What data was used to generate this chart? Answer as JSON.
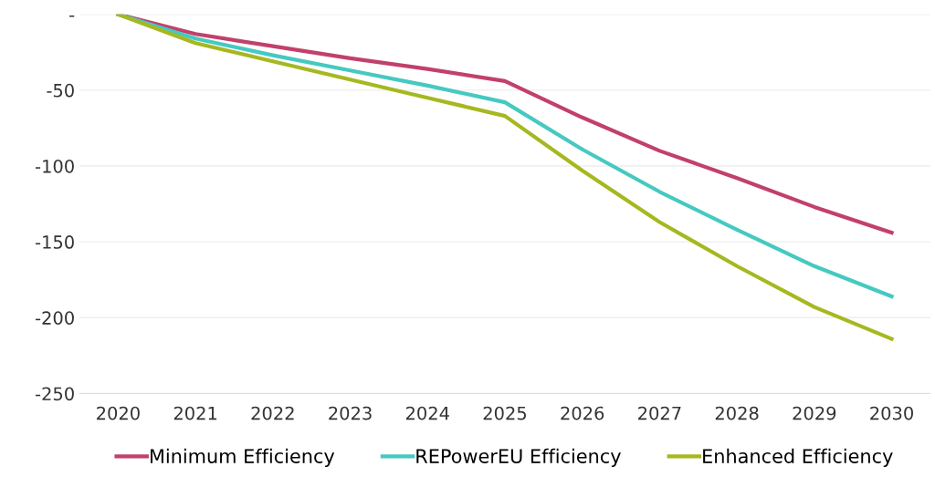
{
  "chart_data": {
    "type": "line",
    "categories": [
      "2020",
      "2021",
      "2022",
      "2023",
      "2024",
      "2025",
      "2026",
      "2027",
      "2028",
      "2029",
      "2030"
    ],
    "series": [
      {
        "name": "Minimum Efficiency",
        "color": "#c2406c",
        "values": [
          0,
          -13,
          -21,
          -29,
          -36,
          -44,
          -68,
          -90,
          -108,
          -127,
          -144
        ]
      },
      {
        "name": "REPowerEU Efficiency",
        "color": "#45c9c1",
        "values": [
          0,
          -16,
          -27,
          -37,
          -47,
          -58,
          -89,
          -117,
          -142,
          -166,
          -186
        ]
      },
      {
        "name": "Enhanced Efficiency",
        "color": "#a6b820",
        "values": [
          0,
          -19,
          -31,
          -43,
          -55,
          -67,
          -103,
          -137,
          -166,
          -193,
          -214
        ]
      }
    ],
    "ylim": [
      -250,
      0
    ],
    "yticks": [
      {
        "value": 0,
        "label": "-"
      },
      -50,
      -100,
      -150,
      -200,
      -250
    ],
    "grid": "y",
    "legend": "bottom",
    "marker": "none",
    "line_style": "solid"
  }
}
